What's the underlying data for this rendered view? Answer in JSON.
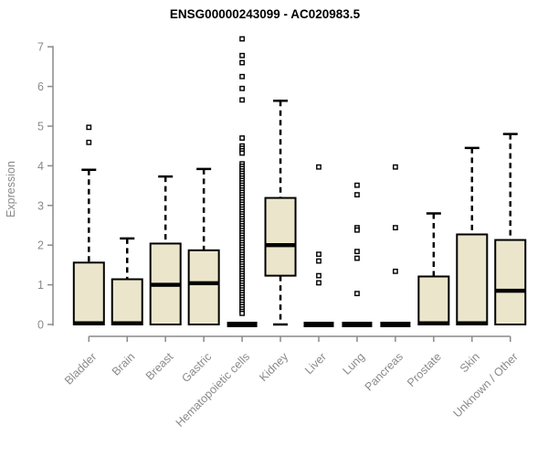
{
  "chart_data": {
    "type": "boxplot",
    "title": "ENSG00000243099 - AC020983.5",
    "ylabel": "Expression",
    "xlabel": "",
    "ylim": [
      0,
      7.2
    ],
    "yticks": [
      0,
      1,
      2,
      3,
      4,
      5,
      6,
      7
    ],
    "grid": false,
    "legend": false,
    "categories": [
      "Bladder",
      "Brain",
      "Breast",
      "Gastric",
      "Hematopoietic cells",
      "Kidney",
      "Liver",
      "Lung",
      "Pancreas",
      "Prostate",
      "Skin",
      "Unknown / Other"
    ],
    "boxes": [
      {
        "category": "Bladder",
        "q1": 0,
        "median": 0.03,
        "q3": 1.56,
        "whisker_low": 0,
        "whisker_high": 3.9,
        "outliers": [
          4.97,
          4.59
        ]
      },
      {
        "category": "Brain",
        "q1": 0,
        "median": 0.03,
        "q3": 1.14,
        "whisker_low": 0,
        "whisker_high": 2.17,
        "outliers": []
      },
      {
        "category": "Breast",
        "q1": 0,
        "median": 1.0,
        "q3": 2.04,
        "whisker_low": 0,
        "whisker_high": 3.73,
        "outliers": []
      },
      {
        "category": "Gastric",
        "q1": 0,
        "median": 1.04,
        "q3": 1.87,
        "whisker_low": 0,
        "whisker_high": 3.92,
        "outliers": []
      },
      {
        "category": "Hematopoietic cells",
        "q1": 0,
        "median": 0,
        "q3": 0,
        "whisker_low": 0,
        "whisker_high": 0,
        "outliers": [
          7.2,
          6.78,
          6.6,
          6.25,
          5.95,
          5.66,
          4.7,
          4.5,
          4.44,
          4.38,
          4.32,
          4.05,
          3.99,
          3.93,
          3.87,
          3.81,
          3.75,
          3.69,
          3.63,
          3.57,
          3.51,
          3.45,
          3.39,
          3.33,
          3.27,
          3.21,
          3.15,
          3.09,
          3.03,
          2.97,
          2.91,
          2.85,
          2.79,
          2.73,
          2.67,
          2.61,
          2.55,
          2.49,
          2.43,
          2.37,
          2.31,
          2.25,
          2.19,
          2.13,
          2.07,
          2.01,
          1.95,
          1.89,
          1.83,
          1.77,
          1.71,
          1.65,
          1.59,
          1.53,
          1.47,
          1.41,
          1.35,
          1.29,
          1.23,
          1.17,
          1.11,
          1.05,
          0.99,
          0.93,
          0.87,
          0.81,
          0.75,
          0.69,
          0.63,
          0.57,
          0.51,
          0.45,
          0.39,
          0.33,
          0.28
        ]
      },
      {
        "category": "Kidney",
        "q1": 1.23,
        "median": 2.0,
        "q3": 3.19,
        "whisker_low": 0,
        "whisker_high": 5.64,
        "outliers": []
      },
      {
        "category": "Liver",
        "q1": 0,
        "median": 0,
        "q3": 0,
        "whisker_low": 0,
        "whisker_high": 0,
        "outliers": [
          3.97,
          1.77,
          1.6,
          1.23,
          1.05
        ]
      },
      {
        "category": "Lung",
        "q1": 0,
        "median": 0,
        "q3": 0,
        "whisker_low": 0,
        "whisker_high": 0,
        "outliers": [
          3.51,
          3.27,
          2.44,
          2.38,
          1.84,
          1.67,
          0.78
        ]
      },
      {
        "category": "Pancreas",
        "q1": 0,
        "median": 0,
        "q3": 0,
        "whisker_low": 0,
        "whisker_high": 0,
        "outliers": [
          3.97,
          2.44,
          1.34
        ]
      },
      {
        "category": "Prostate",
        "q1": 0,
        "median": 0.03,
        "q3": 1.21,
        "whisker_low": 0,
        "whisker_high": 2.8,
        "outliers": []
      },
      {
        "category": "Skin",
        "q1": 0,
        "median": 0.03,
        "q3": 2.27,
        "whisker_low": 0,
        "whisker_high": 4.45,
        "outliers": []
      },
      {
        "category": "Unknown / Other",
        "q1": 0,
        "median": 0.85,
        "q3": 2.13,
        "whisker_low": 0,
        "whisker_high": 4.8,
        "outliers": []
      }
    ],
    "colors": {
      "box_fill": "#ebe6cb",
      "box_border": "#000000",
      "median": "#000000",
      "axis": "#8a8a8a",
      "tick_label": "#8a8a8a",
      "outlier_stroke": "#000000",
      "outlier_fill": "#ffffff",
      "background": "#ffffff"
    }
  }
}
